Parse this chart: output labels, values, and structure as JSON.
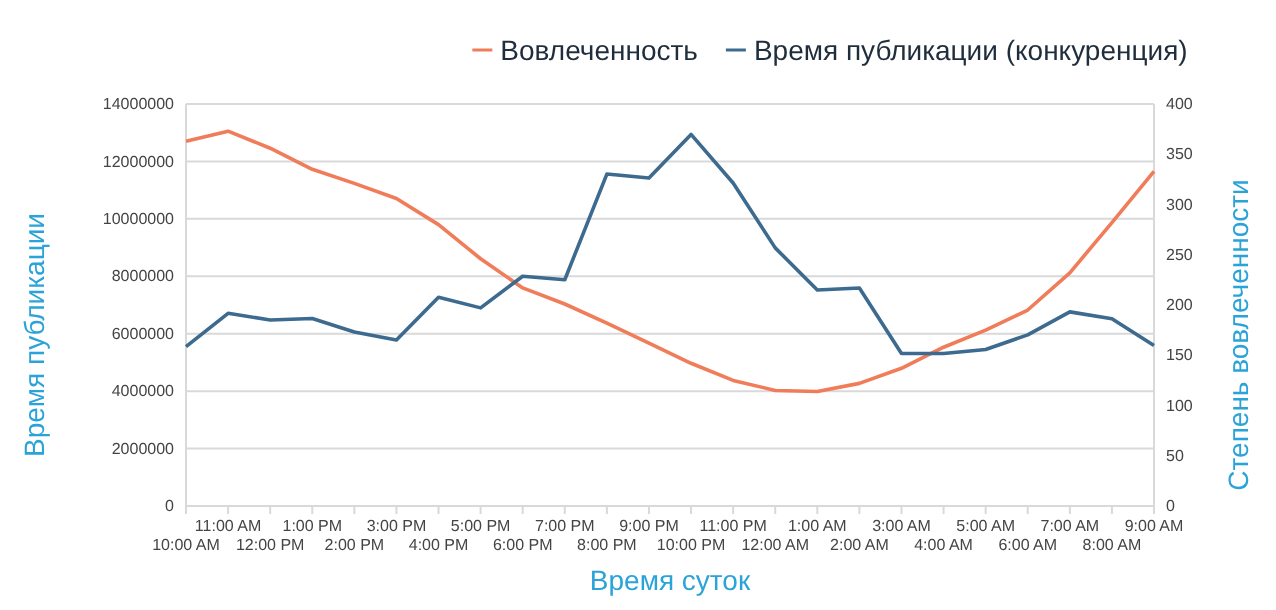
{
  "chart_data": {
    "type": "line",
    "xlabel": "Время суток",
    "ylabel": "Время публикации",
    "y2label": "Степень вовлеченности",
    "categories": [
      "10:00 AM",
      "11:00 AM",
      "12:00 PM",
      "1:00 PM",
      "2:00 PM",
      "3:00 PM",
      "4:00 PM",
      "5:00 PM",
      "6:00 PM",
      "7:00 PM",
      "8:00 PM",
      "9:00 PM",
      "10:00 PM",
      "11:00 PM",
      "12:00 AM",
      "1:00 AM",
      "2:00 AM",
      "3:00 AM",
      "4:00 AM",
      "5:00 AM",
      "6:00 AM",
      "7:00 AM",
      "8:00 AM",
      "9:00 AM"
    ],
    "series": [
      {
        "name": "Вовлеченность",
        "color": "#f07c5a",
        "axis": "y2",
        "values": [
          363,
          373,
          356,
          335,
          321,
          306,
          280,
          246,
          217,
          201,
          182,
          162,
          142,
          125,
          115,
          114,
          122,
          137,
          158,
          175,
          195,
          232,
          282,
          333
        ]
      },
      {
        "name": "Время публикации (конкуренция)",
        "color": "#3d6a8f",
        "values": [
          5550000,
          6710000,
          6480000,
          6530000,
          6060000,
          5780000,
          7270000,
          6900000,
          8000000,
          7880000,
          11560000,
          11420000,
          12940000,
          11250000,
          8990000,
          7520000,
          7590000,
          5310000,
          5310000,
          5450000,
          5960000,
          6760000,
          6520000,
          5590000
        ]
      }
    ],
    "ylim": [
      0,
      14000000
    ],
    "yticks": [
      0,
      2000000,
      4000000,
      6000000,
      8000000,
      10000000,
      12000000,
      14000000
    ],
    "y2lim": [
      0,
      400
    ],
    "y2ticks": [
      0,
      50,
      100,
      150,
      200,
      250,
      300,
      350,
      400
    ],
    "grid": "y",
    "legend": "top",
    "marker": "none",
    "line_style": "solid"
  }
}
